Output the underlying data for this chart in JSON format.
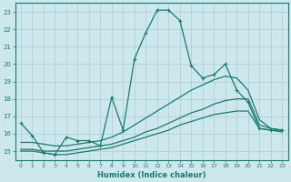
{
  "bg_color": "#cce8ec",
  "grid_color": "#b0d0d8",
  "line_color": "#1a7a6e",
  "xlabel": "Humidex (Indice chaleur)",
  "xlim": [
    -0.5,
    23.5
  ],
  "ylim": [
    14.5,
    23.5
  ],
  "yticks": [
    15,
    16,
    17,
    18,
    19,
    20,
    21,
    22,
    23
  ],
  "xticks": [
    0,
    1,
    2,
    3,
    4,
    5,
    6,
    7,
    8,
    9,
    10,
    11,
    12,
    13,
    14,
    15,
    16,
    17,
    18,
    19,
    20,
    21,
    22,
    23
  ],
  "curve1_x": [
    0,
    1,
    2,
    3,
    4,
    5,
    6,
    7,
    8,
    9,
    10,
    11,
    12,
    13,
    14,
    15,
    16,
    17,
    18,
    19,
    20,
    21,
    22,
    23
  ],
  "curve1_y": [
    16.6,
    15.9,
    14.9,
    14.8,
    15.8,
    15.6,
    15.6,
    15.3,
    18.1,
    16.2,
    20.3,
    21.8,
    23.1,
    23.1,
    22.5,
    19.9,
    19.2,
    19.4,
    20.0,
    18.5,
    17.8,
    16.3,
    16.2,
    16.2
  ],
  "curve2_x": [
    0,
    1,
    2,
    3,
    4,
    5,
    6,
    7,
    8,
    9,
    10,
    11,
    12,
    13,
    14,
    15,
    16,
    17,
    18,
    19,
    20,
    21,
    22,
    23
  ],
  "curve2_y": [
    15.5,
    15.5,
    15.4,
    15.3,
    15.3,
    15.4,
    15.5,
    15.6,
    15.8,
    16.1,
    16.5,
    16.9,
    17.3,
    17.7,
    18.1,
    18.5,
    18.8,
    19.1,
    19.3,
    19.2,
    18.5,
    16.8,
    16.3,
    16.2
  ],
  "curve3_x": [
    0,
    1,
    2,
    3,
    4,
    5,
    6,
    7,
    8,
    9,
    10,
    11,
    12,
    13,
    14,
    15,
    16,
    17,
    18,
    19,
    20,
    21,
    22,
    23
  ],
  "curve3_y": [
    15.1,
    15.1,
    15.0,
    15.0,
    15.0,
    15.1,
    15.2,
    15.3,
    15.4,
    15.6,
    15.8,
    16.1,
    16.3,
    16.6,
    16.9,
    17.2,
    17.4,
    17.7,
    17.9,
    18.0,
    18.0,
    16.5,
    16.3,
    16.2
  ],
  "curve4_x": [
    0,
    1,
    2,
    3,
    4,
    5,
    6,
    7,
    8,
    9,
    10,
    11,
    12,
    13,
    14,
    15,
    16,
    17,
    18,
    19,
    20,
    21,
    22,
    23
  ],
  "curve4_y": [
    15.0,
    15.0,
    14.9,
    14.8,
    14.8,
    14.9,
    15.0,
    15.1,
    15.2,
    15.4,
    15.6,
    15.8,
    16.0,
    16.2,
    16.5,
    16.7,
    16.9,
    17.1,
    17.2,
    17.3,
    17.3,
    16.3,
    16.2,
    16.1
  ]
}
